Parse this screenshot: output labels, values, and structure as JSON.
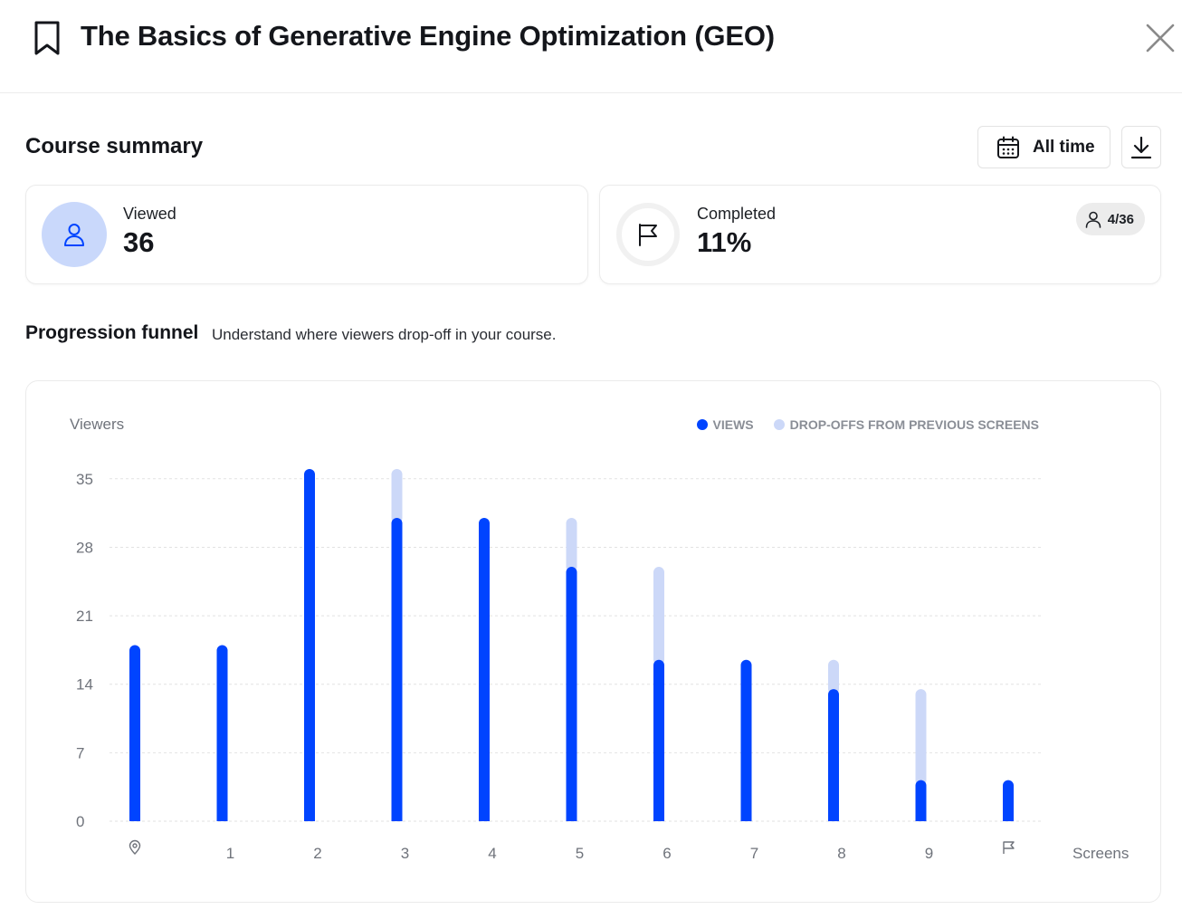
{
  "header": {
    "title": "The Basics of Generative Engine Optimization (GEO)",
    "bookmark_icon": "bookmark-icon",
    "close_icon": "close-icon"
  },
  "summary": {
    "title": "Course summary",
    "time_filter_label": "All time",
    "calendar_icon": "calendar-icon",
    "download_icon": "download-icon"
  },
  "stats": {
    "viewed": {
      "label": "Viewed",
      "value": "36",
      "icon": "user-icon"
    },
    "completed": {
      "label": "Completed",
      "value": "11%",
      "icon": "flag-icon",
      "progress": 0.11,
      "badge": "4/36",
      "badge_icon": "user-icon"
    }
  },
  "funnel": {
    "title": "Progression funnel",
    "subtitle": "Understand where viewers drop-off in your course."
  },
  "colors": {
    "views": "#0044ff",
    "dropoffs": "#ccd8f8",
    "viewed_circle": "#c9d8fb"
  },
  "chart_data": {
    "type": "bar",
    "ylabel": "Viewers",
    "xlabel": "Screens",
    "ylim": [
      0,
      36
    ],
    "yticks": [
      0,
      7,
      14,
      21,
      28,
      35
    ],
    "grid": true,
    "legend_position": "top-right",
    "categories": [
      "start",
      "1",
      "2",
      "3",
      "4",
      "5",
      "6",
      "7",
      "8",
      "9",
      "finish"
    ],
    "category_icons": {
      "start": "location-pin-icon",
      "finish": "flag-icon"
    },
    "series": [
      {
        "name": "VIEWS",
        "values": [
          18,
          18,
          36,
          31,
          31,
          26,
          16.5,
          16.5,
          13.5,
          4.2,
          4.2
        ]
      },
      {
        "name": "DROP-OFFS FROM PREVIOUS SCREENS",
        "values": [
          0,
          0,
          0,
          5,
          0,
          5,
          9.5,
          0,
          3,
          9.3,
          0
        ]
      }
    ]
  }
}
